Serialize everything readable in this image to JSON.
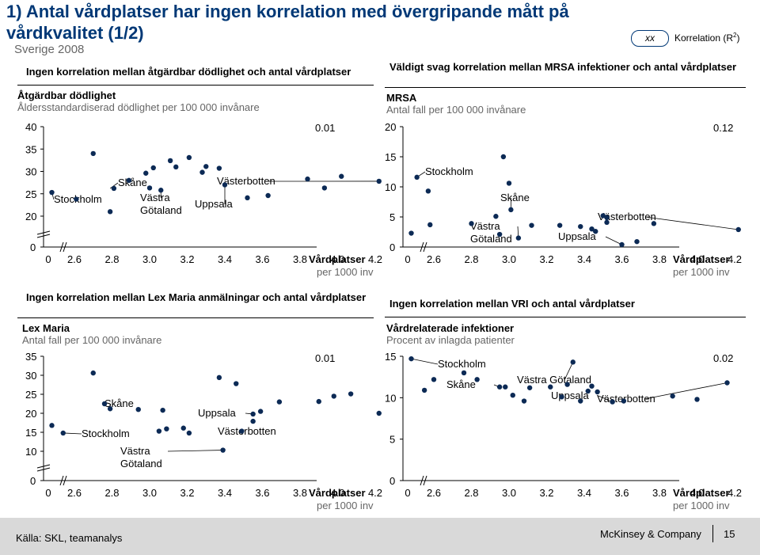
{
  "header": {
    "title_line1": "1) Antal vårdplatser har ingen korrelation med övergripande mått på",
    "title_line2": "vårdkvalitet (1/2)",
    "subtitle": "Sverige 2008",
    "legend_bubble": "xx",
    "legend_label": "Korrelation (R",
    "legend_sup": "2",
    "legend_close": ")"
  },
  "footer": {
    "source": "Källa: SKL, teamanalys",
    "brand": "McKinsey & Company",
    "page": "15"
  },
  "colors": {
    "title": "#003876",
    "dot": "#0c2a55",
    "footer": "#d9d9d9"
  },
  "chart_data": [
    {
      "type": "scatter",
      "panel_title": "Ingen korrelation mellan åtgärdbar dödlighet och antal vårdplatser",
      "title": "Åtgärdbar dödlighet",
      "subtitle": "Åldersstandardiserad dödlighet per 100 000 invånare",
      "r2": "0.01",
      "xlabel": "Vårdplatser",
      "xlabel2": "per 1000 inv",
      "x_ticks": [
        "0",
        "2.6",
        "2.8",
        "3.0",
        "3.2",
        "3.4",
        "3.6",
        "3.8",
        "4.0",
        "4.2"
      ],
      "y_ticks": [
        "0",
        "20",
        "25",
        "30",
        "35",
        "40"
      ],
      "points": [
        [
          2.48,
          25.3
        ],
        [
          2.61,
          23.8
        ],
        [
          2.7,
          34.0
        ],
        [
          2.79,
          21.0
        ],
        [
          2.81,
          26.2
        ],
        [
          2.89,
          28.0
        ],
        [
          2.98,
          29.6
        ],
        [
          3.0,
          26.3
        ],
        [
          3.02,
          30.8
        ],
        [
          3.06,
          25.8
        ],
        [
          3.11,
          32.4
        ],
        [
          3.14,
          31.0
        ],
        [
          3.21,
          33.1
        ],
        [
          3.28,
          29.8
        ],
        [
          3.3,
          31.1
        ],
        [
          3.37,
          30.7
        ],
        [
          3.4,
          27.0
        ],
        [
          3.52,
          24.1
        ],
        [
          3.63,
          24.6
        ],
        [
          3.84,
          28.3
        ],
        [
          3.93,
          26.3
        ],
        [
          4.02,
          28.9
        ],
        [
          4.22,
          27.8
        ]
      ],
      "annotations": [
        {
          "text": "Skåne",
          "x": 2.79,
          "y": 26.2
        },
        {
          "text": "Stockholm",
          "x": 2.48,
          "y": 25.3
        },
        {
          "text": "Västra Götaland",
          "x": 3.06,
          "y": 25.8
        },
        {
          "text": "Uppsala",
          "x": 3.4,
          "y": 27.0
        },
        {
          "text": "Västerbotten",
          "x": 4.22,
          "y": 27.8
        }
      ]
    },
    {
      "type": "scatter",
      "panel_title": "Väldigt svag korrelation mellan MRSA infektioner och antal vårdplatser",
      "title": "MRSA",
      "subtitle": "Antal fall per 100 000 invånare",
      "r2": "0.12",
      "xlabel": "Vårdplatser",
      "xlabel2": "per 1000 inv",
      "x_ticks": [
        "0",
        "2.6",
        "2.8",
        "3.0",
        "3.2",
        "3.4",
        "3.6",
        "3.8",
        "4.0",
        "4.2"
      ],
      "y_ticks": [
        "0",
        "5",
        "10",
        "15",
        "20"
      ],
      "points": [
        [
          2.48,
          2.3
        ],
        [
          2.51,
          11.6
        ],
        [
          2.57,
          9.3
        ],
        [
          2.58,
          3.7
        ],
        [
          2.8,
          3.9
        ],
        [
          2.93,
          5.1
        ],
        [
          2.95,
          2.1
        ],
        [
          2.97,
          15.0
        ],
        [
          3.0,
          10.6
        ],
        [
          3.01,
          6.2
        ],
        [
          3.05,
          1.5
        ],
        [
          3.12,
          3.6
        ],
        [
          3.27,
          3.6
        ],
        [
          3.38,
          3.4
        ],
        [
          3.44,
          3.0
        ],
        [
          3.46,
          2.6
        ],
        [
          3.5,
          5.2
        ],
        [
          3.52,
          4.9
        ],
        [
          3.52,
          4.1
        ],
        [
          3.6,
          0.4
        ],
        [
          3.68,
          0.9
        ],
        [
          3.77,
          3.9
        ],
        [
          4.22,
          2.9
        ]
      ],
      "annotations": [
        {
          "text": "Stockholm",
          "x": 2.51,
          "y": 11.6
        },
        {
          "text": "Skåne",
          "x": 3.01,
          "y": 6.2
        },
        {
          "text": "Västra Götaland",
          "x": 3.05,
          "y": 1.5
        },
        {
          "text": "Uppsala",
          "x": 3.6,
          "y": 0.4
        },
        {
          "text": "Västerbotten",
          "x": 4.22,
          "y": 2.9
        }
      ]
    },
    {
      "type": "scatter",
      "panel_title": "Ingen korrelation mellan Lex Maria anmälningar och antal vårdplatser",
      "title": "Lex Maria",
      "subtitle": "Antal fall per 100 000 invånare",
      "r2": "0.01",
      "xlabel": "Vårdplatser",
      "xlabel2": "per 1000 inv",
      "x_ticks": [
        "0",
        "2.6",
        "2.8",
        "3.0",
        "3.2",
        "3.4",
        "3.6",
        "3.8",
        "4.0",
        "4.2"
      ],
      "y_ticks": [
        "0",
        "10",
        "15",
        "20",
        "25",
        "30",
        "35"
      ],
      "points": [
        [
          2.48,
          16.8
        ],
        [
          2.54,
          14.8
        ],
        [
          2.7,
          30.6
        ],
        [
          2.76,
          22.5
        ],
        [
          2.79,
          21.2
        ],
        [
          2.94,
          21.0
        ],
        [
          3.07,
          20.8
        ],
        [
          3.05,
          15.3
        ],
        [
          3.09,
          15.9
        ],
        [
          3.18,
          16.1
        ],
        [
          3.21,
          14.8
        ],
        [
          3.37,
          29.4
        ],
        [
          3.39,
          10.3
        ],
        [
          3.46,
          27.8
        ],
        [
          3.49,
          15.3
        ],
        [
          3.55,
          19.8
        ],
        [
          3.55,
          17.9
        ],
        [
          3.59,
          20.5
        ],
        [
          3.69,
          23.0
        ],
        [
          3.9,
          23.1
        ],
        [
          3.98,
          24.5
        ],
        [
          4.07,
          25.1
        ],
        [
          4.22,
          20.0
        ]
      ],
      "annotations": [
        {
          "text": "Skåne",
          "x": 2.79,
          "y": 21.2
        },
        {
          "text": "Stockholm",
          "x": 2.54,
          "y": 14.8
        },
        {
          "text": "Västra Götaland",
          "x": 3.39,
          "y": 10.3
        },
        {
          "text": "Uppsala",
          "x": 3.55,
          "y": 19.8
        },
        {
          "text": "Västerbotten",
          "x": 3.49,
          "y": 15.3
        }
      ]
    },
    {
      "type": "scatter",
      "panel_title": "Ingen korrelation mellan VRI och antal vårdplatser",
      "title": "Vårdrelaterade infektioner",
      "subtitle": "Procent av inlagda patienter",
      "r2": "0.02",
      "xlabel": "Vårdplatser",
      "xlabel2": "per 1000 inv",
      "x_ticks": [
        "0",
        "2.6",
        "2.8",
        "3.0",
        "3.2",
        "3.4",
        "3.6",
        "3.8",
        "4.0",
        "4.2"
      ],
      "y_ticks": [
        "0",
        "5",
        "10",
        "15"
      ],
      "points": [
        [
          2.48,
          14.7
        ],
        [
          2.55,
          10.9
        ],
        [
          2.6,
          12.2
        ],
        [
          2.76,
          13.0
        ],
        [
          2.83,
          12.2
        ],
        [
          2.95,
          11.3
        ],
        [
          2.98,
          11.3
        ],
        [
          3.02,
          10.3
        ],
        [
          3.08,
          9.6
        ],
        [
          3.11,
          11.2
        ],
        [
          3.22,
          11.3
        ],
        [
          3.28,
          10.1
        ],
        [
          3.31,
          11.6
        ],
        [
          3.34,
          14.3
        ],
        [
          3.38,
          9.6
        ],
        [
          3.42,
          10.8
        ],
        [
          3.44,
          11.4
        ],
        [
          3.47,
          10.7
        ],
        [
          3.55,
          9.5
        ],
        [
          3.61,
          9.6
        ],
        [
          3.87,
          10.2
        ],
        [
          4.0,
          9.8
        ],
        [
          4.16,
          11.8
        ]
      ],
      "annotations": [
        {
          "text": "Stockholm",
          "x": 2.48,
          "y": 14.7
        },
        {
          "text": "Skåne",
          "x": 2.95,
          "y": 11.3
        },
        {
          "text": "Västra Götaland",
          "x": 3.34,
          "y": 14.3
        },
        {
          "text": "Uppsala",
          "x": 3.55,
          "y": 9.5
        },
        {
          "text": "Västerbotten",
          "x": 4.16,
          "y": 11.8
        }
      ]
    }
  ]
}
